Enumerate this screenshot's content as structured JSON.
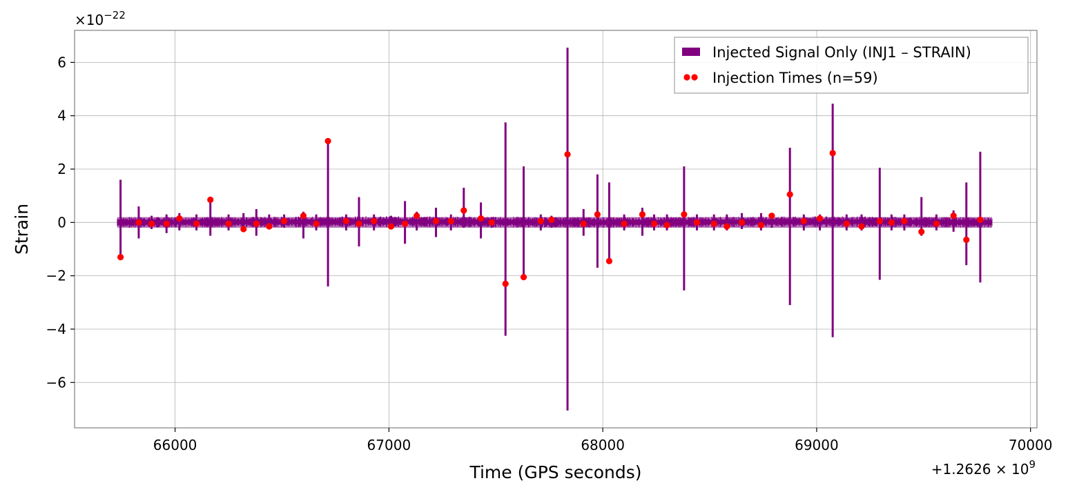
{
  "chart_data": {
    "type": "line",
    "title": "",
    "xlabel": "Time (GPS seconds)",
    "ylabel": "Strain",
    "x_offset_label": "+1.2626 × 10",
    "x_offset_exponent": "9",
    "y_scale_label": "×10",
    "y_scale_exponent": "−22",
    "xlim": [
      65530,
      70030
    ],
    "ylim": [
      -7.7,
      7.2
    ],
    "x_ticks": [
      66000,
      67000,
      68000,
      69000,
      70000
    ],
    "x_tick_labels": [
      "66000",
      "67000",
      "68000",
      "69000",
      "70000"
    ],
    "y_ticks": [
      -6,
      -4,
      -2,
      0,
      2,
      4,
      6
    ],
    "y_tick_labels": [
      "−6",
      "−4",
      "−2",
      "0",
      "2",
      "4",
      "6"
    ],
    "grid": true,
    "legend_position": "top-right",
    "colors": {
      "signal": "#800080",
      "injection": "#ff0000",
      "grid": "#b0b0b0",
      "frame": "#808080"
    },
    "series": [
      {
        "name": "Injected Signal Only (INJ1 – STRAIN)",
        "kind": "signal",
        "x_range": [
          65730,
          69820
        ],
        "baseline": [
          [
            65730,
            0.0
          ],
          [
            67000,
            0.03
          ],
          [
            68000,
            0.0
          ],
          [
            69000,
            0.03
          ],
          [
            69820,
            0.0
          ]
        ],
        "band_halfwidth": 0.2,
        "spikes": [
          [
            65745,
            1.6,
            -1.4
          ],
          [
            65830,
            0.6,
            -0.6
          ],
          [
            65890,
            0.25,
            -0.25
          ],
          [
            65960,
            0.3,
            -0.4
          ],
          [
            66020,
            0.35,
            -0.3
          ],
          [
            66100,
            0.3,
            -0.3
          ],
          [
            66165,
            0.9,
            -0.5
          ],
          [
            66250,
            0.3,
            -0.3
          ],
          [
            66320,
            0.35,
            -0.35
          ],
          [
            66380,
            0.5,
            -0.5
          ],
          [
            66440,
            0.3,
            -0.2
          ],
          [
            66510,
            0.3,
            -0.2
          ],
          [
            66600,
            0.4,
            -0.6
          ],
          [
            66660,
            0.3,
            -0.3
          ],
          [
            66715,
            3.05,
            -2.4
          ],
          [
            66800,
            0.3,
            -0.3
          ],
          [
            66860,
            0.95,
            -0.9
          ],
          [
            66930,
            0.3,
            -0.3
          ],
          [
            67010,
            0.25,
            -0.2
          ],
          [
            67075,
            0.8,
            -0.8
          ],
          [
            67130,
            0.4,
            -0.3
          ],
          [
            67220,
            0.55,
            -0.55
          ],
          [
            67290,
            0.3,
            -0.3
          ],
          [
            67350,
            1.3,
            -0.2
          ],
          [
            67430,
            0.75,
            -0.6
          ],
          [
            67480,
            0.2,
            -0.2
          ],
          [
            67545,
            3.75,
            -4.25
          ],
          [
            67630,
            2.1,
            -2.1
          ],
          [
            67710,
            0.3,
            -0.3
          ],
          [
            67760,
            0.25,
            -0.2
          ],
          [
            67835,
            6.55,
            -7.05
          ],
          [
            67910,
            0.5,
            -0.5
          ],
          [
            67975,
            1.8,
            -1.7
          ],
          [
            68030,
            1.5,
            -1.45
          ],
          [
            68100,
            0.3,
            -0.3
          ],
          [
            68185,
            0.55,
            -0.5
          ],
          [
            68240,
            0.3,
            -0.3
          ],
          [
            68300,
            0.3,
            -0.3
          ],
          [
            68380,
            2.1,
            -2.55
          ],
          [
            68440,
            0.3,
            -0.3
          ],
          [
            68520,
            0.3,
            -0.3
          ],
          [
            68580,
            0.3,
            -0.3
          ],
          [
            68650,
            0.35,
            -0.25
          ],
          [
            68740,
            0.35,
            -0.3
          ],
          [
            68790,
            0.35,
            -0.2
          ],
          [
            68875,
            2.8,
            -3.1
          ],
          [
            68940,
            0.3,
            -0.3
          ],
          [
            69015,
            0.3,
            -0.3
          ],
          [
            69075,
            4.45,
            -4.3
          ],
          [
            69140,
            0.3,
            -0.3
          ],
          [
            69210,
            0.3,
            -0.3
          ],
          [
            69295,
            2.05,
            -2.15
          ],
          [
            69350,
            0.3,
            -0.3
          ],
          [
            69410,
            0.3,
            -0.3
          ],
          [
            69490,
            0.95,
            -0.5
          ],
          [
            69560,
            0.3,
            -0.3
          ],
          [
            69640,
            0.45,
            -0.35
          ],
          [
            69700,
            1.5,
            -1.6
          ],
          [
            69765,
            2.65,
            -2.25
          ]
        ]
      },
      {
        "name": "Injection Times (n=59)",
        "kind": "injection",
        "points": [
          [
            65745,
            -1.3
          ],
          [
            65830,
            0.0
          ],
          [
            65890,
            -0.05
          ],
          [
            65960,
            -0.05
          ],
          [
            66020,
            0.15
          ],
          [
            66100,
            -0.05
          ],
          [
            66165,
            0.85
          ],
          [
            66250,
            -0.05
          ],
          [
            66320,
            -0.25
          ],
          [
            66380,
            -0.05
          ],
          [
            66440,
            -0.15
          ],
          [
            66510,
            0.05
          ],
          [
            66600,
            0.25
          ],
          [
            66660,
            -0.05
          ],
          [
            66715,
            3.05
          ],
          [
            66800,
            0.05
          ],
          [
            66860,
            -0.05
          ],
          [
            66930,
            0.05
          ],
          [
            67010,
            -0.15
          ],
          [
            67075,
            -0.05
          ],
          [
            67130,
            0.25
          ],
          [
            67220,
            0.05
          ],
          [
            67290,
            0.05
          ],
          [
            67350,
            0.45
          ],
          [
            67430,
            0.15
          ],
          [
            67480,
            0.0
          ],
          [
            67545,
            -2.3
          ],
          [
            67630,
            -2.05
          ],
          [
            67710,
            0.05
          ],
          [
            67760,
            0.1
          ],
          [
            67835,
            2.55
          ],
          [
            67910,
            -0.05
          ],
          [
            67975,
            0.3
          ],
          [
            68030,
            -1.45
          ],
          [
            68100,
            -0.05
          ],
          [
            68185,
            0.3
          ],
          [
            68240,
            -0.05
          ],
          [
            68300,
            -0.1
          ],
          [
            68380,
            0.3
          ],
          [
            68440,
            0.0
          ],
          [
            68520,
            -0.05
          ],
          [
            68580,
            -0.15
          ],
          [
            68650,
            0.0
          ],
          [
            68740,
            -0.1
          ],
          [
            68790,
            0.25
          ],
          [
            68875,
            1.05
          ],
          [
            68940,
            0.05
          ],
          [
            69015,
            0.15
          ],
          [
            69075,
            2.6
          ],
          [
            69140,
            -0.05
          ],
          [
            69210,
            -0.15
          ],
          [
            69295,
            0.05
          ],
          [
            69350,
            0.0
          ],
          [
            69410,
            0.05
          ],
          [
            69490,
            -0.35
          ],
          [
            69560,
            -0.05
          ],
          [
            69640,
            0.25
          ],
          [
            69700,
            -0.65
          ],
          [
            69765,
            0.1
          ]
        ]
      }
    ]
  }
}
